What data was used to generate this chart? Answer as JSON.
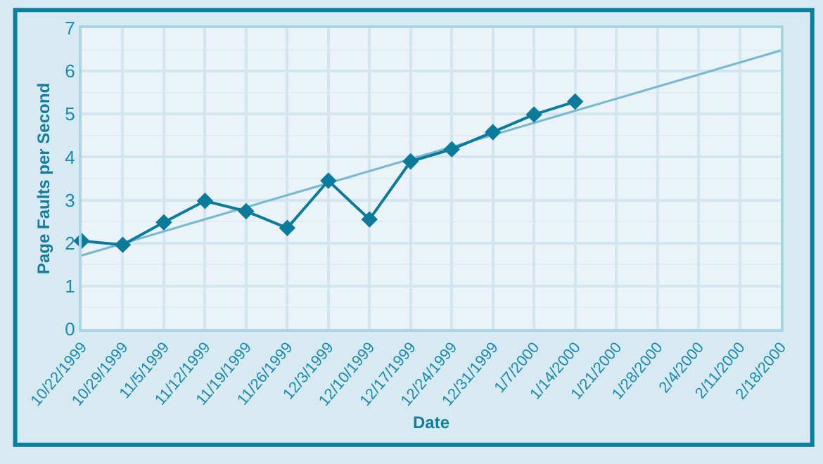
{
  "chart_data": {
    "type": "line",
    "xlabel": "Date",
    "ylabel": "Page Faults per Second",
    "categories": [
      "10/22/1999",
      "10/29/1999",
      "11/5/1999",
      "11/12/1999",
      "11/19/1999",
      "11/26/1999",
      "12/3/1999",
      "12/10/1999",
      "12/17/1999",
      "12/24/1999",
      "12/31/1999",
      "1/7/2000",
      "1/14/2000",
      "1/21/2000",
      "1/28/2000",
      "2/4/2000",
      "2/11/2000",
      "2/18/2000"
    ],
    "series": [
      {
        "color": "#0b7a9b",
        "marker": "diamond",
        "values": [
          2.05,
          1.96,
          2.48,
          2.98,
          2.74,
          2.35,
          3.45,
          2.55,
          3.9,
          4.18,
          4.58,
          4.99,
          5.29,
          null,
          null,
          null,
          null,
          null
        ]
      },
      {
        "type": "line",
        "color": "#78b9d2",
        "marker": "none",
        "x": [
          "10/22/1999",
          "2/18/2000"
        ],
        "values": [
          1.71,
          6.48
        ]
      }
    ],
    "ylim": [
      0,
      7
    ],
    "yticks": [
      0,
      1,
      2,
      3,
      4,
      5,
      6,
      7
    ],
    "grid": true
  }
}
